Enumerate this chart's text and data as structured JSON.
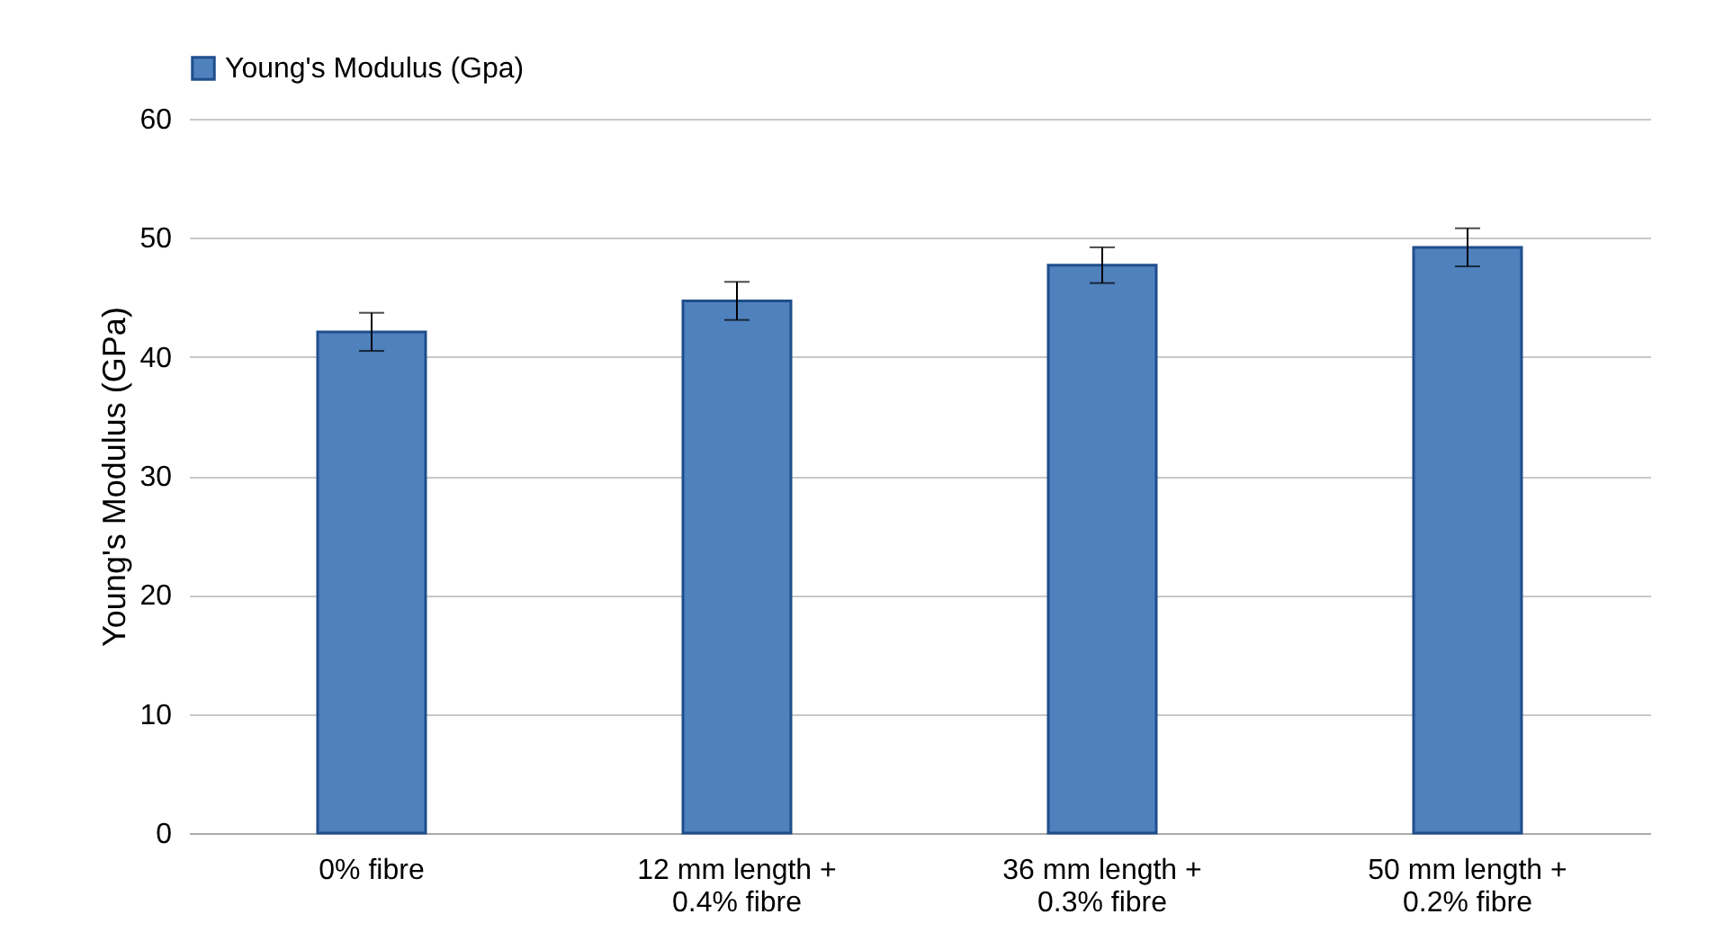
{
  "chart_data": {
    "type": "bar",
    "ylabel": "Young's Modulus (GPa)",
    "categories": [
      "0% fibre",
      "12 mm length +\n0.4% fibre",
      "36 mm length +\n0.3% fibre",
      "50 mm length +\n0.2% fibre"
    ],
    "series": [
      {
        "name": "Young's Modulus (Gpa)",
        "color": "#4f81bd",
        "values": [
          42.1,
          44.7,
          47.7,
          49.2
        ],
        "errors": [
          1.6,
          1.6,
          1.5,
          1.6
        ]
      }
    ],
    "ylim": [
      0,
      60
    ],
    "yticks": [
      0,
      10,
      20,
      30,
      40,
      50,
      60
    ],
    "grid": "y",
    "legend": "top"
  }
}
